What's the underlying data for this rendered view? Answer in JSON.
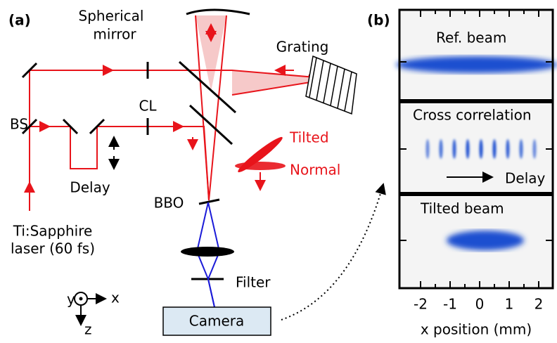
{
  "panel_a": {
    "label": "(a)",
    "mirror_label": [
      "Spherical",
      "mirror"
    ],
    "grating": "Grating",
    "lens": "CL",
    "beam_splitter": "BS",
    "delay": "Delay",
    "crystal": "BBO",
    "laser": [
      "Ti:Sapphire",
      "laser (60 fs)"
    ],
    "tilted": "Tilted",
    "normal": "Normal",
    "filter": "Filter",
    "camera": "Camera",
    "axes": [
      "y",
      "x",
      "z"
    ]
  },
  "panel_b": {
    "label": "(b)",
    "panels": [
      "Ref. beam",
      "Cross correlation",
      "Tilted beam"
    ],
    "delay": "Delay",
    "x_axis": {
      "ticks": [
        -2,
        -1,
        0,
        1,
        2
      ],
      "label": "x position (mm)"
    }
  }
}
